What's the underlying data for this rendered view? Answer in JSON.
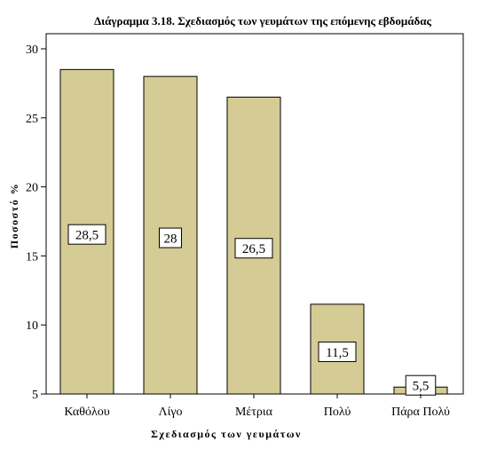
{
  "chart_data": {
    "type": "bar",
    "title": "Διάγραμμα 3.18. Σχεδιασμός των γευμάτων της επόμενης εβδομάδας",
    "xlabel": "Σχεδιασμός των γευμάτων",
    "ylabel": "Ποσοστό %",
    "categories": [
      "Καθόλου",
      "Λίγο",
      "Μέτρια",
      "Πολύ",
      "Πάρα Πολύ"
    ],
    "values": [
      28.5,
      28,
      26.5,
      11.5,
      5.5
    ],
    "data_labels": [
      "28,5",
      "28",
      "26,5",
      "11,5",
      "5,5"
    ],
    "ylim": [
      5,
      30
    ],
    "yticks": [
      5,
      10,
      15,
      20,
      25,
      30
    ],
    "grid": false,
    "legend": "none",
    "colors": {
      "bar_fill": "#d4cc94",
      "bar_stroke": "#000000",
      "plot_border": "#000000",
      "background": "#ffffff"
    }
  }
}
